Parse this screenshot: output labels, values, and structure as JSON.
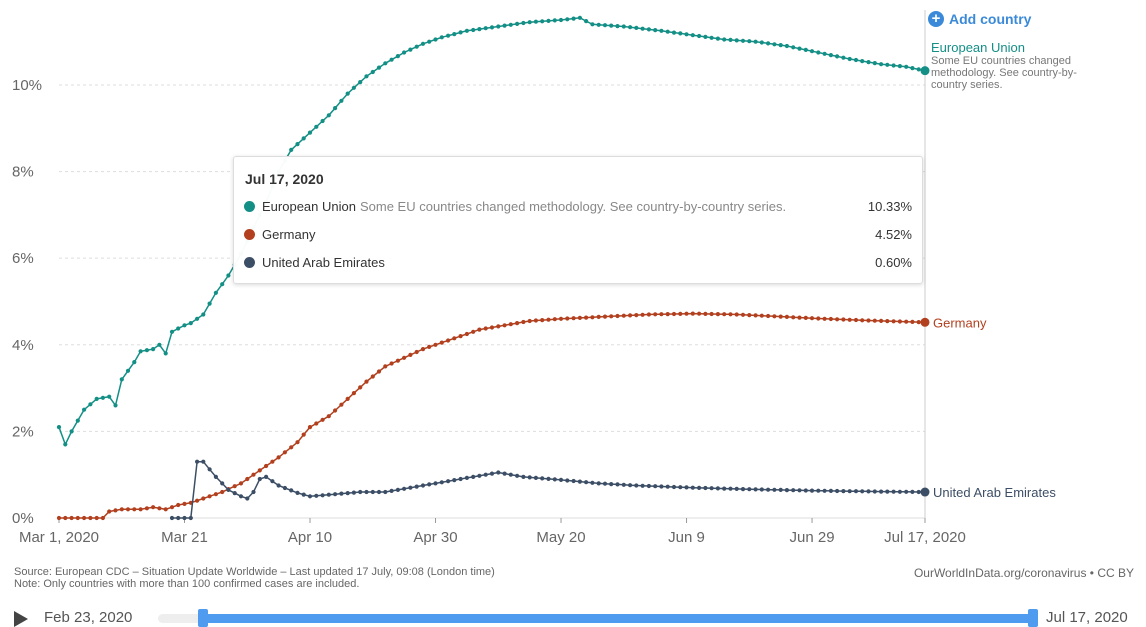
{
  "add_country_label": "Add country",
  "colors": {
    "eu": "#138f86",
    "germany": "#b2401f",
    "uae": "#3c4e66",
    "grid": "#dddddd",
    "accent": "#3b8ad9"
  },
  "chart_data": {
    "type": "line",
    "title": "",
    "x_axis": {
      "type": "date",
      "range": [
        "2020-03-01",
        "2020-07-17"
      ],
      "ticks": [
        "Mar 1, 2020",
        "Mar 21",
        "Apr 10",
        "Apr 30",
        "May 20",
        "Jun 9",
        "Jun 29",
        "Jul 17, 2020"
      ]
    },
    "y_axis": {
      "range": [
        0,
        11.5
      ],
      "unit": "%",
      "ticks": [
        "0%",
        "2%",
        "4%",
        "6%",
        "8%",
        "10%"
      ],
      "grid": true
    },
    "series": [
      {
        "name": "European Union",
        "note": "Some EU countries changed methodology. See country-by-country series.",
        "label_note": "Some EU countries changed methodology. See country-by-country series.",
        "color": "#138f86",
        "points": [
          [
            "2020-03-01",
            2.1
          ],
          [
            "2020-03-02",
            1.7
          ],
          [
            "2020-03-03",
            2.0
          ],
          [
            "2020-03-05",
            2.5
          ],
          [
            "2020-03-07",
            2.75
          ],
          [
            "2020-03-09",
            2.8
          ],
          [
            "2020-03-10",
            2.6
          ],
          [
            "2020-03-11",
            3.2
          ],
          [
            "2020-03-13",
            3.6
          ],
          [
            "2020-03-14",
            3.85
          ],
          [
            "2020-03-16",
            3.9
          ],
          [
            "2020-03-17",
            4.0
          ],
          [
            "2020-03-18",
            3.8
          ],
          [
            "2020-03-19",
            4.3
          ],
          [
            "2020-03-21",
            4.45
          ],
          [
            "2020-03-22",
            4.5
          ],
          [
            "2020-03-24",
            4.7
          ],
          [
            "2020-03-26",
            5.2
          ],
          [
            "2020-03-28",
            5.6
          ],
          [
            "2020-03-30",
            6.1
          ],
          [
            "2020-04-01",
            6.7
          ],
          [
            "2020-04-03",
            7.3
          ],
          [
            "2020-04-05",
            8.0
          ],
          [
            "2020-04-07",
            8.5
          ],
          [
            "2020-04-10",
            8.9
          ],
          [
            "2020-04-13",
            9.3
          ],
          [
            "2020-04-16",
            9.8
          ],
          [
            "2020-04-19",
            10.2
          ],
          [
            "2020-04-22",
            10.5
          ],
          [
            "2020-04-25",
            10.75
          ],
          [
            "2020-04-28",
            10.95
          ],
          [
            "2020-05-01",
            11.1
          ],
          [
            "2020-05-05",
            11.25
          ],
          [
            "2020-05-10",
            11.35
          ],
          [
            "2020-05-15",
            11.45
          ],
          [
            "2020-05-20",
            11.5
          ],
          [
            "2020-05-23",
            11.55
          ],
          [
            "2020-05-25",
            11.4
          ],
          [
            "2020-05-30",
            11.35
          ],
          [
            "2020-06-05",
            11.25
          ],
          [
            "2020-06-10",
            11.15
          ],
          [
            "2020-06-15",
            11.05
          ],
          [
            "2020-06-20",
            11.0
          ],
          [
            "2020-06-25",
            10.9
          ],
          [
            "2020-06-30",
            10.75
          ],
          [
            "2020-07-05",
            10.6
          ],
          [
            "2020-07-10",
            10.48
          ],
          [
            "2020-07-14",
            10.42
          ],
          [
            "2020-07-17",
            10.33
          ]
        ]
      },
      {
        "name": "Germany",
        "color": "#b2401f",
        "points": [
          [
            "2020-03-01",
            0.0
          ],
          [
            "2020-03-08",
            0.0
          ],
          [
            "2020-03-09",
            0.15
          ],
          [
            "2020-03-11",
            0.2
          ],
          [
            "2020-03-14",
            0.2
          ],
          [
            "2020-03-16",
            0.25
          ],
          [
            "2020-03-18",
            0.2
          ],
          [
            "2020-03-20",
            0.3
          ],
          [
            "2020-03-22",
            0.35
          ],
          [
            "2020-03-24",
            0.45
          ],
          [
            "2020-03-27",
            0.6
          ],
          [
            "2020-03-30",
            0.8
          ],
          [
            "2020-04-02",
            1.1
          ],
          [
            "2020-04-05",
            1.4
          ],
          [
            "2020-04-08",
            1.75
          ],
          [
            "2020-04-10",
            2.1
          ],
          [
            "2020-04-13",
            2.35
          ],
          [
            "2020-04-16",
            2.75
          ],
          [
            "2020-04-19",
            3.15
          ],
          [
            "2020-04-22",
            3.5
          ],
          [
            "2020-04-25",
            3.7
          ],
          [
            "2020-04-28",
            3.9
          ],
          [
            "2020-05-01",
            4.05
          ],
          [
            "2020-05-04",
            4.2
          ],
          [
            "2020-05-07",
            4.35
          ],
          [
            "2020-05-11",
            4.45
          ],
          [
            "2020-05-15",
            4.55
          ],
          [
            "2020-05-20",
            4.6
          ],
          [
            "2020-05-27",
            4.65
          ],
          [
            "2020-06-03",
            4.7
          ],
          [
            "2020-06-10",
            4.72
          ],
          [
            "2020-06-17",
            4.7
          ],
          [
            "2020-06-24",
            4.65
          ],
          [
            "2020-07-01",
            4.6
          ],
          [
            "2020-07-08",
            4.56
          ],
          [
            "2020-07-17",
            4.52
          ]
        ]
      },
      {
        "name": "United Arab Emirates",
        "color": "#3c4e66",
        "points": [
          [
            "2020-03-19",
            0.0
          ],
          [
            "2020-03-22",
            0.0
          ],
          [
            "2020-03-23",
            1.3
          ],
          [
            "2020-03-24",
            1.3
          ],
          [
            "2020-03-26",
            0.95
          ],
          [
            "2020-03-28",
            0.65
          ],
          [
            "2020-03-30",
            0.5
          ],
          [
            "2020-03-31",
            0.45
          ],
          [
            "2020-04-01",
            0.6
          ],
          [
            "2020-04-02",
            0.9
          ],
          [
            "2020-04-03",
            0.95
          ],
          [
            "2020-04-05",
            0.75
          ],
          [
            "2020-04-08",
            0.58
          ],
          [
            "2020-04-10",
            0.5
          ],
          [
            "2020-04-14",
            0.55
          ],
          [
            "2020-04-18",
            0.6
          ],
          [
            "2020-04-22",
            0.6
          ],
          [
            "2020-04-26",
            0.7
          ],
          [
            "2020-04-30",
            0.8
          ],
          [
            "2020-05-04",
            0.9
          ],
          [
            "2020-05-08",
            1.0
          ],
          [
            "2020-05-10",
            1.05
          ],
          [
            "2020-05-14",
            0.95
          ],
          [
            "2020-05-20",
            0.88
          ],
          [
            "2020-05-26",
            0.8
          ],
          [
            "2020-06-01",
            0.75
          ],
          [
            "2020-06-10",
            0.7
          ],
          [
            "2020-06-20",
            0.66
          ],
          [
            "2020-06-30",
            0.63
          ],
          [
            "2020-07-10",
            0.61
          ],
          [
            "2020-07-17",
            0.6
          ]
        ]
      }
    ]
  },
  "tooltip": {
    "date": "Jul 17, 2020",
    "rows": [
      {
        "name": "European Union",
        "note": "Some EU countries changed methodology. See country-by-country series.",
        "value": "10.33%"
      },
      {
        "name": "Germany",
        "note": "",
        "value": "4.52%"
      },
      {
        "name": "United Arab Emirates",
        "note": "",
        "value": "0.60%"
      }
    ]
  },
  "footer": {
    "source": "Source: European CDC – Situation Update Worldwide – Last updated 17 July, 09:08 (London time)",
    "note": "Note: Only countries with more than 100 confirmed cases are included.",
    "owid": "OurWorldInData.org/coronavirus • CC BY"
  },
  "timeline": {
    "start_label": "Feb 23, 2020",
    "end_label": "Jul 17, 2020"
  }
}
